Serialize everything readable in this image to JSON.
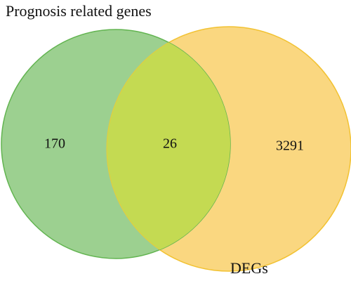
{
  "sets": [
    {
      "label": "Prognosis related genes"
    },
    {
      "label": "DEGs"
    }
  ],
  "regions": {
    "left_only": 170,
    "both": 26,
    "right_only": 3291
  }
}
